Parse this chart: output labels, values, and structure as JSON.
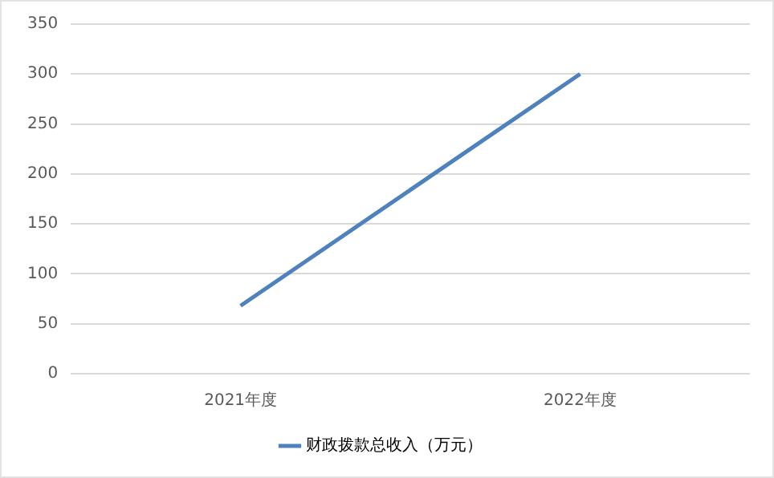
{
  "chart_data": {
    "type": "line",
    "categories": [
      "2021年度",
      "2022年度"
    ],
    "series": [
      {
        "name": "财政拨款总收入（万元）",
        "color": "#4f81bd",
        "values": [
          68,
          300
        ]
      }
    ],
    "ylim": [
      0,
      350
    ],
    "yticks": [
      0,
      50,
      100,
      150,
      200,
      250,
      300,
      350
    ],
    "grid": "y",
    "legend": "bottom",
    "marker": "none"
  }
}
